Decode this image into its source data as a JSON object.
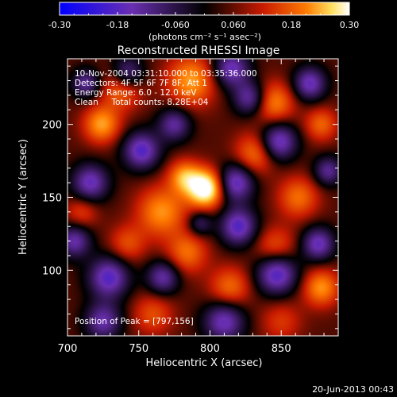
{
  "chart_data": {
    "type": "heatmap",
    "title": "Reconstructed RHESSI Image",
    "xlabel": "Heliocentric X (arcsec)",
    "ylabel": "Heliocentric Y (arcsec)",
    "xlim": [
      700,
      890
    ],
    "ylim": [
      55,
      245
    ],
    "xticks": [
      700,
      750,
      800,
      850
    ],
    "yticks": [
      100,
      150,
      200
    ],
    "grid": false,
    "colorbar": {
      "min": -0.3,
      "max": 0.3,
      "ticks": [
        "-0.30",
        "-0.18",
        "-0.060",
        "0.060",
        "0.18",
        "0.30"
      ],
      "units_label": "(photons cm⁻² s⁻¹ asec⁻²)",
      "colors": [
        "#0000ff",
        "#6a2fb0",
        "#000000",
        "#c81a00",
        "#ff7a00",
        "#ffffff"
      ]
    },
    "annotations": [
      "10-Nov-2004 03:31:10.000 to 03:35:36.000",
      "Detectors: 4F 5F 6F 7F 8F, Att 1",
      "Energy Range: 6.0 - 12.0 keV",
      "Clean     Total counts: 8.28E+04"
    ],
    "peak_label": "Position of Peak = [797,156]",
    "peak": {
      "x": 797,
      "y": 156,
      "value": 0.3
    },
    "features": [
      {
        "x": 797,
        "y": 156,
        "v": 0.3,
        "s": 9
      },
      {
        "x": 782,
        "y": 164,
        "v": 0.16,
        "s": 8
      },
      {
        "x": 766,
        "y": 140,
        "v": 0.16,
        "s": 12
      },
      {
        "x": 724,
        "y": 200,
        "v": 0.17,
        "s": 9
      },
      {
        "x": 738,
        "y": 225,
        "v": 0.14,
        "s": 10
      },
      {
        "x": 787,
        "y": 230,
        "v": 0.17,
        "s": 12
      },
      {
        "x": 845,
        "y": 215,
        "v": 0.15,
        "s": 10
      },
      {
        "x": 878,
        "y": 200,
        "v": 0.12,
        "s": 8
      },
      {
        "x": 832,
        "y": 180,
        "v": 0.14,
        "s": 10
      },
      {
        "x": 862,
        "y": 150,
        "v": 0.13,
        "s": 10
      },
      {
        "x": 846,
        "y": 115,
        "v": 0.12,
        "s": 10
      },
      {
        "x": 878,
        "y": 88,
        "v": 0.16,
        "s": 9
      },
      {
        "x": 814,
        "y": 88,
        "v": 0.13,
        "s": 10
      },
      {
        "x": 784,
        "y": 112,
        "v": 0.13,
        "s": 10
      },
      {
        "x": 742,
        "y": 118,
        "v": 0.1,
        "s": 9
      },
      {
        "x": 710,
        "y": 140,
        "v": 0.09,
        "s": 8
      },
      {
        "x": 760,
        "y": 70,
        "v": 0.1,
        "s": 10
      },
      {
        "x": 850,
        "y": 65,
        "v": 0.08,
        "s": 10
      },
      {
        "x": 716,
        "y": 160,
        "v": -0.2,
        "s": 9
      },
      {
        "x": 752,
        "y": 182,
        "v": -0.22,
        "s": 9
      },
      {
        "x": 775,
        "y": 200,
        "v": -0.17,
        "s": 8
      },
      {
        "x": 742,
        "y": 235,
        "v": -0.18,
        "s": 8
      },
      {
        "x": 815,
        "y": 238,
        "v": -0.2,
        "s": 9
      },
      {
        "x": 828,
        "y": 218,
        "v": -0.18,
        "s": 8
      },
      {
        "x": 870,
        "y": 228,
        "v": -0.2,
        "s": 8
      },
      {
        "x": 848,
        "y": 188,
        "v": -0.22,
        "s": 9
      },
      {
        "x": 818,
        "y": 160,
        "v": -0.22,
        "s": 9
      },
      {
        "x": 883,
        "y": 168,
        "v": -0.16,
        "s": 7
      },
      {
        "x": 820,
        "y": 130,
        "v": -0.22,
        "s": 9
      },
      {
        "x": 847,
        "y": 98,
        "v": -0.24,
        "s": 10
      },
      {
        "x": 876,
        "y": 118,
        "v": -0.2,
        "s": 8
      },
      {
        "x": 810,
        "y": 65,
        "v": -0.2,
        "s": 10
      },
      {
        "x": 767,
        "y": 95,
        "v": -0.18,
        "s": 8
      },
      {
        "x": 729,
        "y": 95,
        "v": -0.22,
        "s": 10
      },
      {
        "x": 705,
        "y": 120,
        "v": -0.18,
        "s": 8
      },
      {
        "x": 725,
        "y": 65,
        "v": -0.18,
        "s": 9
      },
      {
        "x": 713,
        "y": 228,
        "v": -0.16,
        "s": 7
      },
      {
        "x": 793,
        "y": 132,
        "v": -0.12,
        "s": 6
      }
    ]
  },
  "footer_date": "20-Jun-2013 00:43"
}
